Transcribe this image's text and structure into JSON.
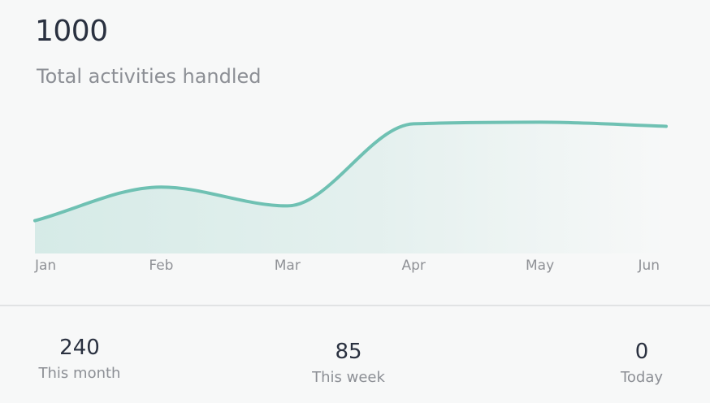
{
  "summary": {
    "total_value": "1000",
    "total_label": "Total activities handled"
  },
  "chart_data": {
    "type": "area",
    "categories": [
      "Jan",
      "Feb",
      "Mar",
      "Apr",
      "May",
      "Jun"
    ],
    "series": [
      {
        "values": [
          200,
          405,
          290,
          790,
          800,
          775
        ]
      }
    ],
    "xlabel": "",
    "ylabel": "",
    "ylim": [
      0,
      1000
    ],
    "grid": false,
    "legend": "none",
    "colors": {
      "line": "#6fc1b3",
      "fill": "#d2e9e5"
    }
  },
  "stats": {
    "month": {
      "value": "240",
      "label": "This month"
    },
    "week": {
      "value": "85",
      "label": "This week"
    },
    "today": {
      "value": "0",
      "label": "Today"
    }
  }
}
